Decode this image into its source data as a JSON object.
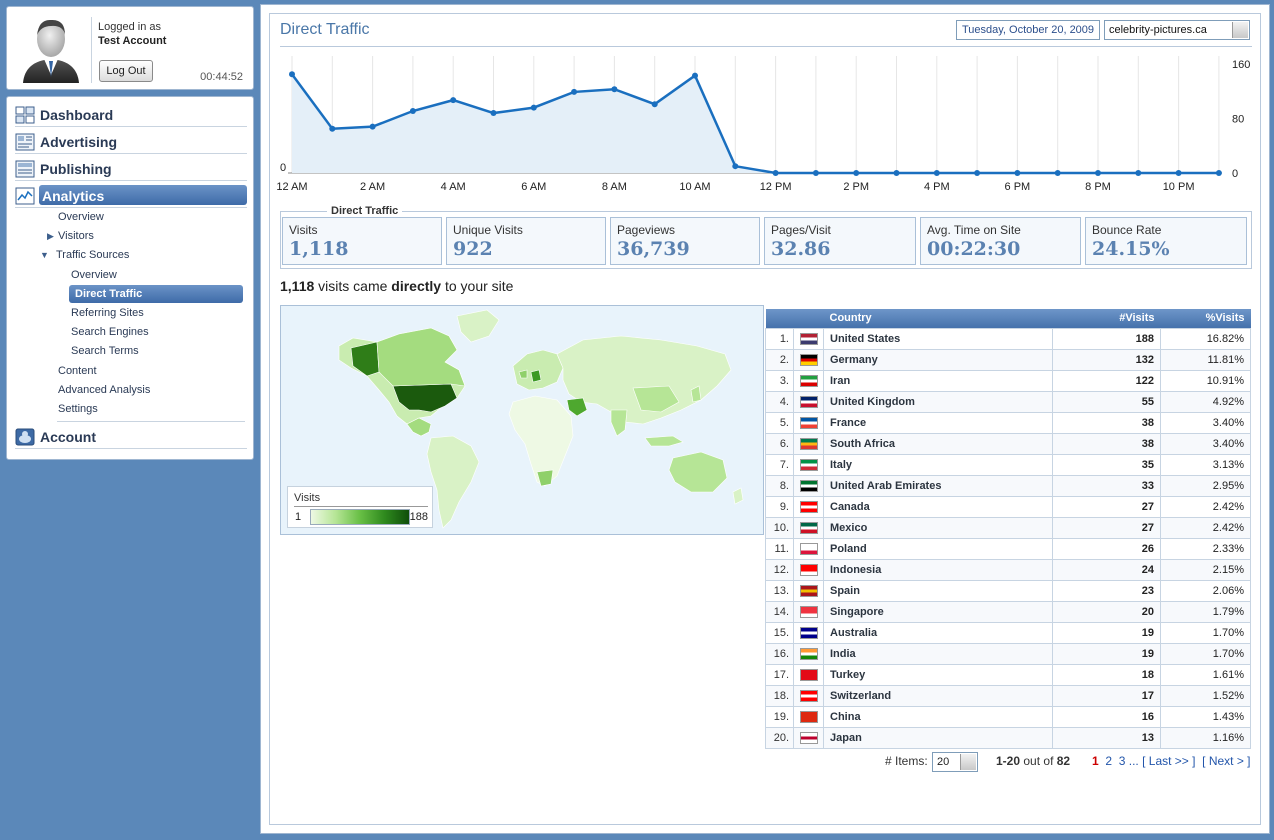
{
  "user": {
    "logged_in_label": "Logged in as",
    "account_name": "Test Account",
    "logout_label": "Log Out",
    "session_time": "00:44:52"
  },
  "nav": {
    "main": [
      {
        "label": "Dashboard",
        "icon": "dashboard-icon"
      },
      {
        "label": "Advertising",
        "icon": "advertising-icon"
      },
      {
        "label": "Publishing",
        "icon": "publishing-icon"
      },
      {
        "label": "Analytics",
        "icon": "analytics-icon",
        "active": true
      },
      {
        "label": "Account",
        "icon": "account-icon"
      }
    ],
    "analytics_sub": {
      "overview": "Overview",
      "visitors": "Visitors",
      "traffic_sources": "Traffic Sources",
      "ts_overview": "Overview",
      "direct_traffic": "Direct Traffic",
      "referring_sites": "Referring Sites",
      "search_engines": "Search Engines",
      "search_terms": "Search Terms",
      "content": "Content",
      "advanced_analysis": "Advanced Analysis",
      "settings": "Settings"
    }
  },
  "header": {
    "title": "Direct Traffic",
    "date": "Tuesday, October 20, 2009",
    "site": "celebrity-pictures.ca"
  },
  "chart_data": {
    "type": "area",
    "x_tick_labels": [
      "12 AM",
      "2 AM",
      "4 AM",
      "6 AM",
      "8 AM",
      "10 AM",
      "12 PM",
      "2 PM",
      "4 PM",
      "6 PM",
      "8 PM",
      "10 PM"
    ],
    "y_tick_labels": [
      "160",
      "80",
      "0"
    ],
    "y_left_label": "0",
    "ylim": [
      0,
      160
    ],
    "values": [
      145,
      65,
      68,
      91,
      107,
      88,
      96,
      119,
      123,
      101,
      143,
      10,
      0,
      0,
      0,
      0,
      0,
      0,
      0,
      0,
      0,
      0,
      0,
      0
    ],
    "grid": true,
    "line_color": "#1a6fbf",
    "fill_color": "#e4eff8"
  },
  "summary": {
    "legend": "Direct Traffic",
    "stats": [
      {
        "label": "Visits",
        "value": "1,118"
      },
      {
        "label": "Unique Visits",
        "value": "922"
      },
      {
        "label": "Pageviews",
        "value": "36,739"
      },
      {
        "label": "Pages/Visit",
        "value": "32.86"
      },
      {
        "label": "Avg. Time on Site",
        "value": "00:22:30"
      },
      {
        "label": "Bounce Rate",
        "value": "24.15%"
      }
    ]
  },
  "visits_summary": {
    "count": "1,118",
    "text_a": " visits came ",
    "bold": "directly",
    "text_b": " to your site"
  },
  "map_legend": {
    "title": "Visits",
    "min": "1",
    "max": "188"
  },
  "table": {
    "headers": {
      "country": "Country",
      "visits": "#Visits",
      "pct": "%Visits"
    },
    "rows": [
      {
        "rank": "1.",
        "country": "United States",
        "visits": "188",
        "pct": "16.82%",
        "flag": [
          "#b22234",
          "#ffffff",
          "#3c3b6e"
        ]
      },
      {
        "rank": "2.",
        "country": "Germany",
        "visits": "132",
        "pct": "11.81%",
        "flag": [
          "#000000",
          "#dd0000",
          "#ffce00"
        ]
      },
      {
        "rank": "3.",
        "country": "Iran",
        "visits": "122",
        "pct": "10.91%",
        "flag": [
          "#239f40",
          "#ffffff",
          "#da0000"
        ]
      },
      {
        "rank": "4.",
        "country": "United Kingdom",
        "visits": "55",
        "pct": "4.92%",
        "flag": [
          "#012169",
          "#ffffff",
          "#c8102e"
        ]
      },
      {
        "rank": "5.",
        "country": "France",
        "visits": "38",
        "pct": "3.40%",
        "flag": [
          "#0055a4",
          "#ffffff",
          "#ef4135"
        ]
      },
      {
        "rank": "6.",
        "country": "South Africa",
        "visits": "38",
        "pct": "3.40%",
        "flag": [
          "#007a4d",
          "#ffb612",
          "#de3831"
        ]
      },
      {
        "rank": "7.",
        "country": "Italy",
        "visits": "35",
        "pct": "3.13%",
        "flag": [
          "#009246",
          "#ffffff",
          "#ce2b37"
        ]
      },
      {
        "rank": "8.",
        "country": "United Arab Emirates",
        "visits": "33",
        "pct": "2.95%",
        "flag": [
          "#00732f",
          "#ffffff",
          "#000000"
        ]
      },
      {
        "rank": "9.",
        "country": "Canada",
        "visits": "27",
        "pct": "2.42%",
        "flag": [
          "#ff0000",
          "#ffffff",
          "#ff0000"
        ]
      },
      {
        "rank": "10.",
        "country": "Mexico",
        "visits": "27",
        "pct": "2.42%",
        "flag": [
          "#006847",
          "#ffffff",
          "#ce1126"
        ]
      },
      {
        "rank": "11.",
        "country": "Poland",
        "visits": "26",
        "pct": "2.33%",
        "flag": [
          "#ffffff",
          "#ffffff",
          "#dc143c"
        ]
      },
      {
        "rank": "12.",
        "country": "Indonesia",
        "visits": "24",
        "pct": "2.15%",
        "flag": [
          "#ff0000",
          "#ff0000",
          "#ffffff"
        ]
      },
      {
        "rank": "13.",
        "country": "Spain",
        "visits": "23",
        "pct": "2.06%",
        "flag": [
          "#aa151b",
          "#f1bf00",
          "#aa151b"
        ]
      },
      {
        "rank": "14.",
        "country": "Singapore",
        "visits": "20",
        "pct": "1.79%",
        "flag": [
          "#ef3340",
          "#ef3340",
          "#ffffff"
        ]
      },
      {
        "rank": "15.",
        "country": "Australia",
        "visits": "19",
        "pct": "1.70%",
        "flag": [
          "#00008b",
          "#ffffff",
          "#00008b"
        ]
      },
      {
        "rank": "16.",
        "country": "India",
        "visits": "19",
        "pct": "1.70%",
        "flag": [
          "#ff9933",
          "#ffffff",
          "#138808"
        ]
      },
      {
        "rank": "17.",
        "country": "Turkey",
        "visits": "18",
        "pct": "1.61%",
        "flag": [
          "#e30a17",
          "#e30a17",
          "#e30a17"
        ]
      },
      {
        "rank": "18.",
        "country": "Switzerland",
        "visits": "17",
        "pct": "1.52%",
        "flag": [
          "#ff0000",
          "#ffffff",
          "#ff0000"
        ]
      },
      {
        "rank": "19.",
        "country": "China",
        "visits": "16",
        "pct": "1.43%",
        "flag": [
          "#de2910",
          "#de2910",
          "#de2910"
        ]
      },
      {
        "rank": "20.",
        "country": "Japan",
        "visits": "13",
        "pct": "1.16%",
        "flag": [
          "#ffffff",
          "#bc002d",
          "#ffffff"
        ]
      }
    ]
  },
  "pager": {
    "items_label": "# Items:",
    "items_value": "20",
    "range": "1-20",
    "out_of": "out of",
    "total": "82",
    "pages": [
      "1",
      "2",
      "3"
    ],
    "ellipsis": "...",
    "last": "[ Last >> ]",
    "next": "[ Next > ]"
  }
}
